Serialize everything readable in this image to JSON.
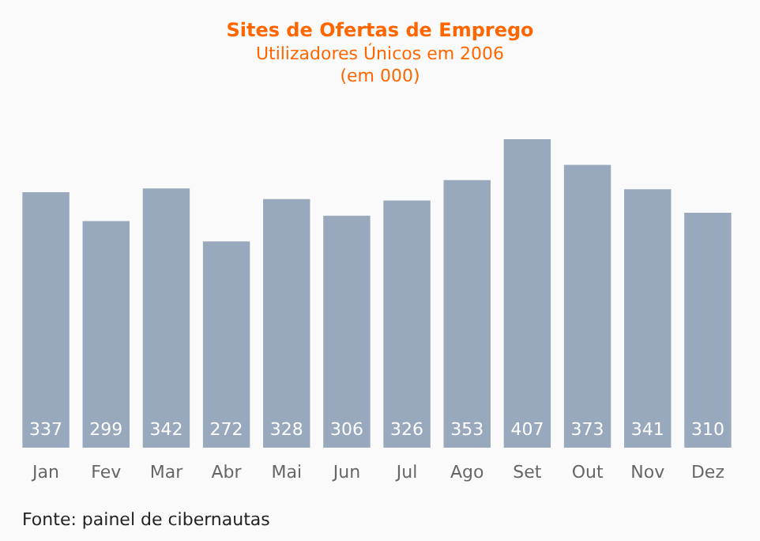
{
  "chart_data": {
    "type": "bar",
    "title": "Sites de Ofertas de Emprego",
    "subtitle": "Utilizadores Únicos em 2006\n(em 000)",
    "categories": [
      "Jan",
      "Fev",
      "Mar",
      "Abr",
      "Mai",
      "Jun",
      "Jul",
      "Ago",
      "Set",
      "Out",
      "Nov",
      "Dez"
    ],
    "values": [
      337,
      299,
      342,
      272,
      328,
      306,
      326,
      353,
      407,
      373,
      341,
      310
    ],
    "color": "#98a8bd",
    "data_labels": true,
    "annotations": [
      "Fonte: painel de cibernautas"
    ]
  }
}
